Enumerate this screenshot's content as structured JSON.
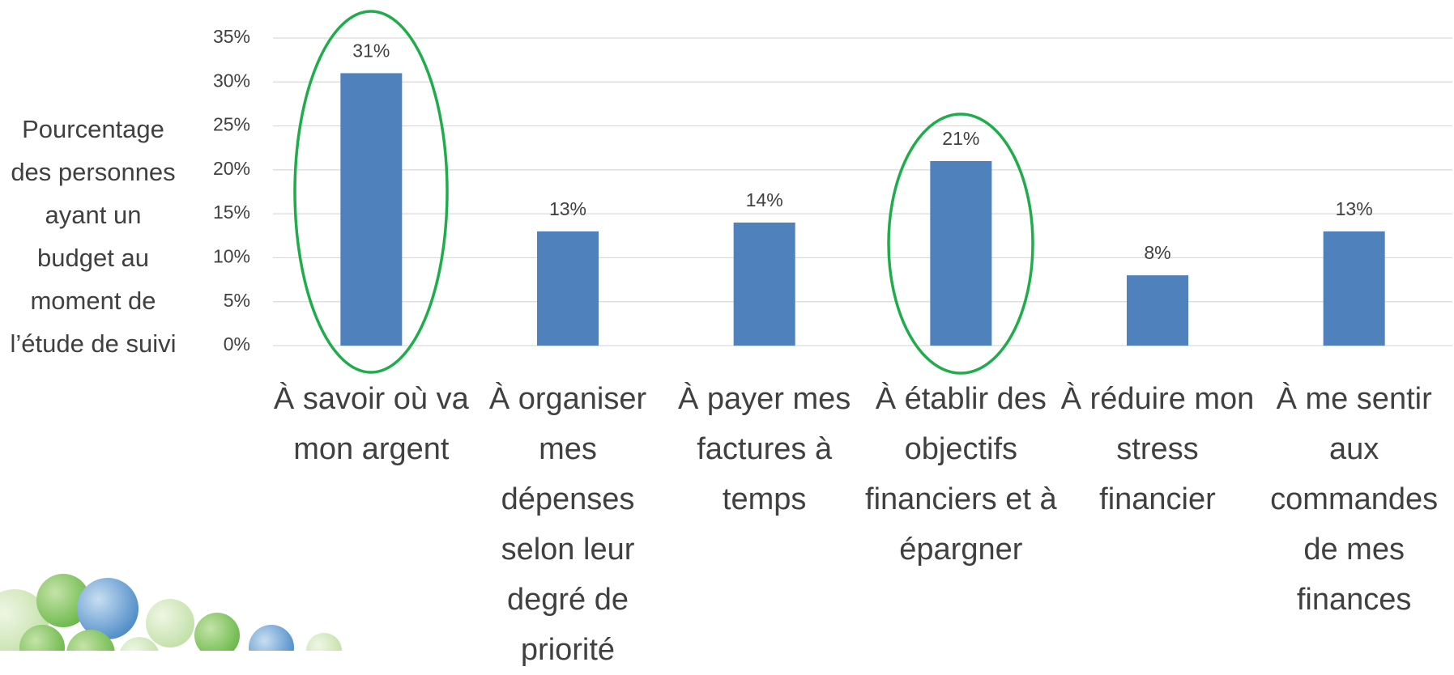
{
  "chart_data": {
    "type": "bar",
    "y_label": "Pourcentage des personnes ayant un budget au moment de l’étude de suivi",
    "categories": [
      "À savoir où va mon argent",
      "À organiser mes dépenses selon leur degré de priorité",
      "À payer mes factures à temps",
      "À établir des objectifs financiers et à épargner",
      "À réduire mon stress financier",
      "À me sentir aux commandes de mes finances"
    ],
    "values": [
      31,
      13,
      14,
      21,
      8,
      13
    ],
    "value_labels": [
      "31%",
      "13%",
      "14%",
      "21%",
      "8%",
      "13%"
    ],
    "color": "#4f81bd",
    "ylim": [
      0,
      35
    ],
    "yticks": [
      {
        "value": 0,
        "label": "0%"
      },
      {
        "value": 5,
        "label": "5%"
      },
      {
        "value": 10,
        "label": "10%"
      },
      {
        "value": 15,
        "label": "15%"
      },
      {
        "value": 20,
        "label": "20%"
      },
      {
        "value": 25,
        "label": "25%"
      },
      {
        "value": 30,
        "label": "30%"
      },
      {
        "value": 35,
        "label": "35%"
      }
    ],
    "grid": true
  }
}
